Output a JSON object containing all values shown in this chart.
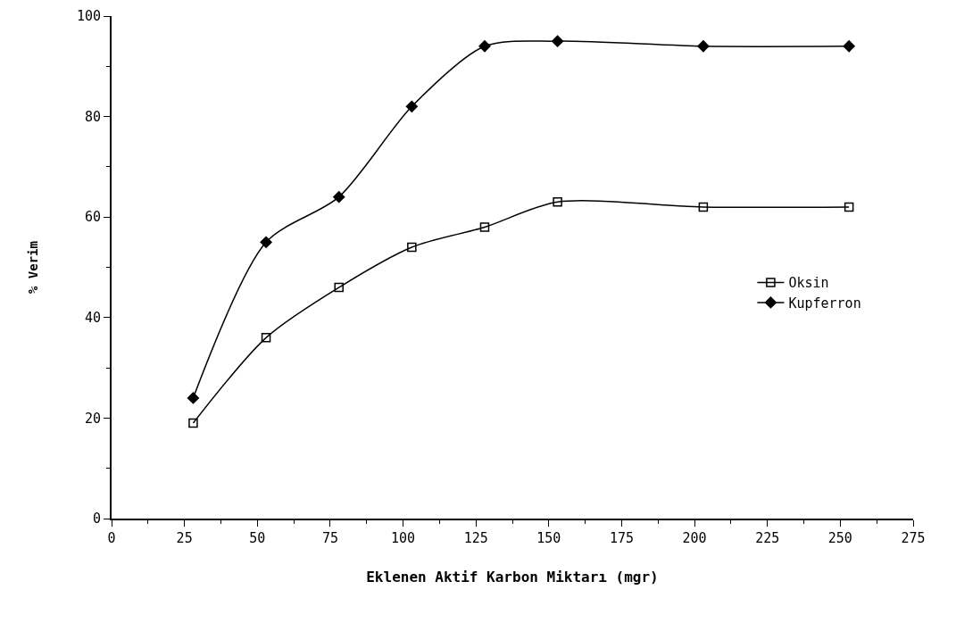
{
  "chart_data": {
    "type": "line",
    "xlabel": "Eklenen Aktif Karbon Miktarı (mgr)",
    "ylabel": "% Verim",
    "x": [
      28,
      53,
      78,
      103,
      128,
      153,
      203,
      253
    ],
    "series": [
      {
        "name": "Oksin",
        "color": "#000000",
        "marker": "square",
        "values": [
          19,
          36,
          46,
          54,
          58,
          63,
          62,
          62
        ]
      },
      {
        "name": "Kupferron",
        "color": "#000000",
        "marker": "diamond",
        "values": [
          24,
          55,
          64,
          82,
          94,
          95,
          94,
          94
        ]
      }
    ],
    "xlim": [
      0,
      275
    ],
    "xticks": [
      0,
      25,
      50,
      75,
      100,
      125,
      150,
      175,
      200,
      225,
      250,
      275
    ],
    "ylim": [
      0,
      100
    ],
    "yticks": [
      0,
      20,
      40,
      60,
      80,
      100
    ],
    "grid": false,
    "legend": "right",
    "line_style": "solid"
  }
}
